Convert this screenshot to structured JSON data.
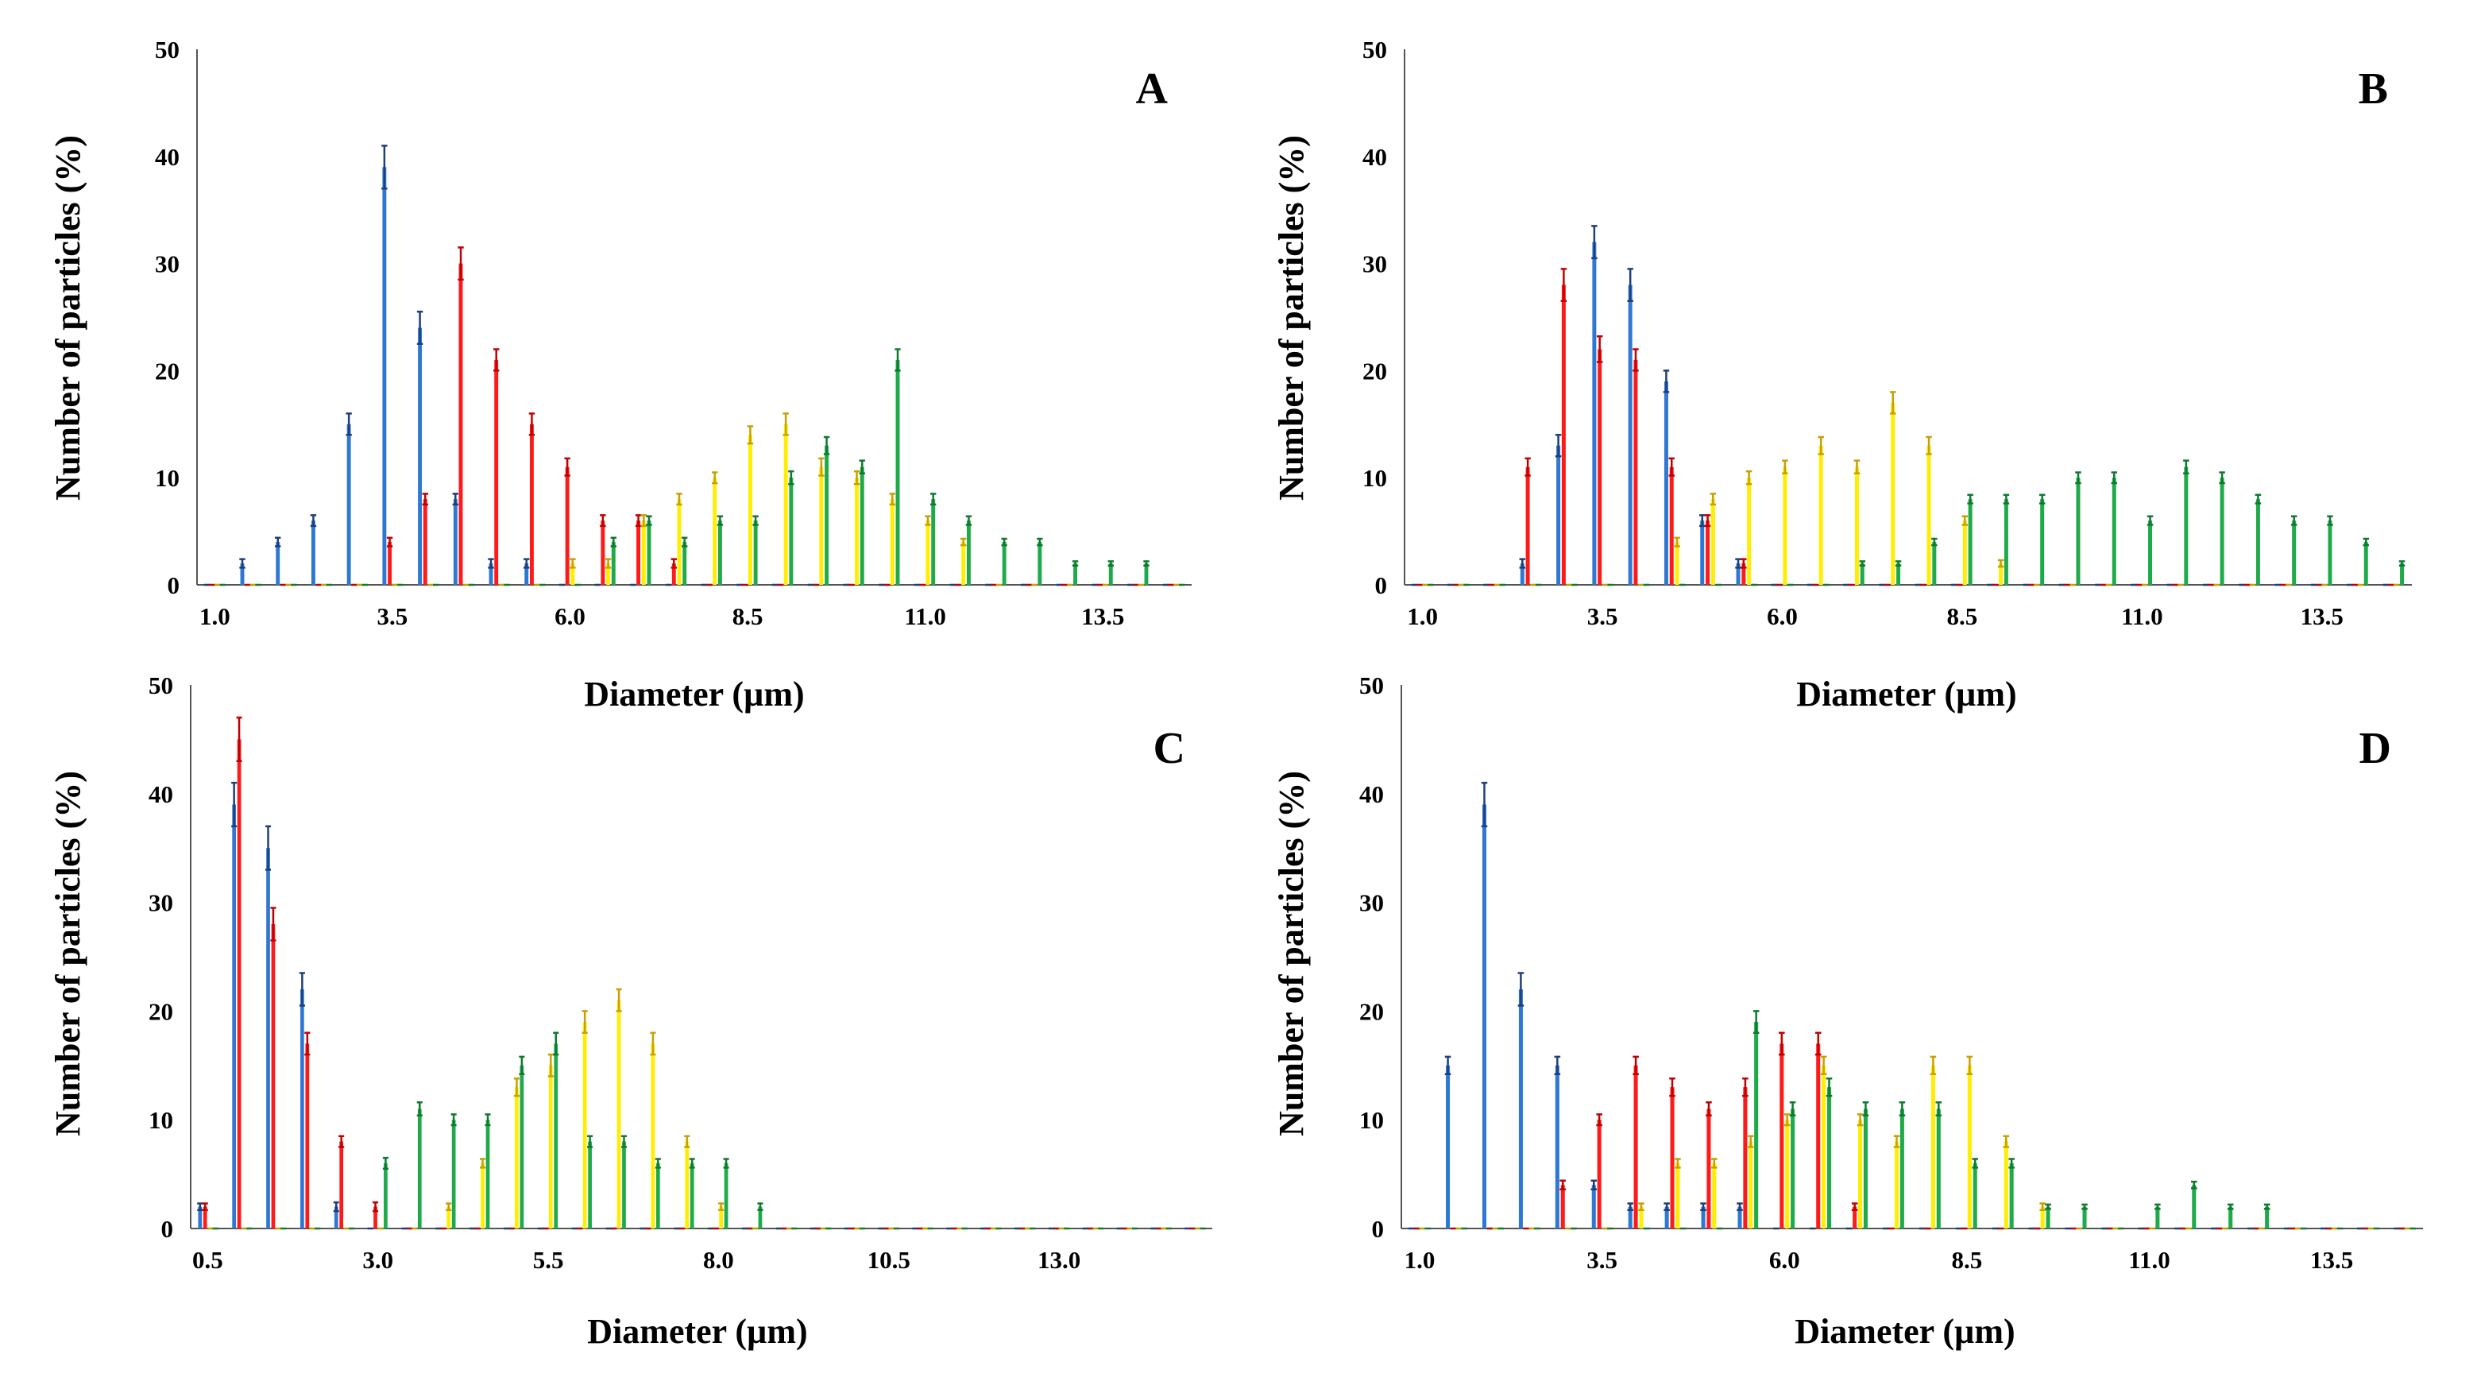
{
  "figure": {
    "series_colors": {
      "s1": "#2e78d2",
      "s2": "#ff1a1a",
      "s3": "#ffee00",
      "s4": "#1faa4a"
    },
    "errorbar_colors": {
      "s1": "#1f3f7a",
      "s2": "#c00000",
      "s3": "#c8a000",
      "s4": "#0e7a30"
    }
  },
  "chart_data": [
    {
      "panel": "A",
      "type": "bar",
      "xlabel": "Diameter (µm)",
      "ylabel": "Number  of  particles (%)",
      "ylim": [
        0,
        50
      ],
      "yticks": [
        "0",
        "10",
        "20",
        "30",
        "40",
        "50"
      ],
      "categories": [
        "1.0",
        "1.5",
        "2.0",
        "2.5",
        "3.0",
        "3.5",
        "4.0",
        "4.5",
        "5.0",
        "5.5",
        "6.0",
        "6.5",
        "7.0",
        "7.5",
        "8.0",
        "8.5",
        "9.0",
        "9.5",
        "10.0",
        "10.5",
        "11.0",
        "11.5",
        "12.0",
        "12.5",
        "13.0",
        "13.5",
        "14.0",
        "14.5"
      ],
      "xtick_labels": [
        "1.0",
        "3.5",
        "6.0",
        "8.5",
        "11.0",
        "13.5"
      ],
      "xtick_every": 5,
      "series": [
        {
          "name": "s1",
          "values": [
            0,
            2,
            4,
            6,
            15,
            39,
            24,
            8,
            2,
            2,
            0,
            0,
            0,
            0,
            0,
            0,
            0,
            0,
            0,
            0,
            0,
            0,
            0,
            0,
            0,
            0,
            0,
            0
          ],
          "errors": [
            0,
            0.4,
            0.4,
            0.5,
            1,
            2,
            1.5,
            0.5,
            0.4,
            0.4,
            0,
            0,
            0,
            0,
            0,
            0,
            0,
            0,
            0,
            0,
            0,
            0,
            0,
            0,
            0,
            0,
            0,
            0
          ]
        },
        {
          "name": "s2",
          "values": [
            0,
            0,
            0,
            0,
            0,
            4,
            8,
            30,
            21,
            15,
            11,
            6,
            6,
            2,
            0,
            0,
            0,
            0,
            0,
            0,
            0,
            0,
            0,
            0,
            0,
            0,
            0,
            0
          ],
          "errors": [
            0,
            0,
            0,
            0,
            0,
            0.4,
            0.5,
            1.5,
            1,
            1,
            0.8,
            0.5,
            0.5,
            0.4,
            0,
            0,
            0,
            0,
            0,
            0,
            0,
            0,
            0,
            0,
            0,
            0,
            0,
            0
          ]
        },
        {
          "name": "s3",
          "values": [
            0,
            0,
            0,
            0,
            0,
            0,
            0,
            0,
            0,
            0,
            2,
            2,
            6,
            8,
            10,
            14,
            15,
            11,
            10,
            8,
            6,
            4,
            0,
            0,
            0,
            0,
            0,
            0
          ],
          "errors": [
            0,
            0,
            0,
            0,
            0,
            0,
            0,
            0,
            0,
            0,
            0.4,
            0.4,
            0.5,
            0.5,
            0.5,
            0.8,
            1,
            0.8,
            0.6,
            0.5,
            0.4,
            0.3,
            0,
            0,
            0,
            0,
            0,
            0
          ]
        },
        {
          "name": "s4",
          "values": [
            0,
            0,
            0,
            0,
            0,
            0,
            0,
            0,
            0,
            0,
            0,
            4,
            6,
            4,
            6,
            6,
            10,
            13,
            11,
            21,
            8,
            6,
            4,
            4,
            2,
            2,
            2,
            0
          ],
          "errors": [
            0,
            0,
            0,
            0,
            0,
            0,
            0,
            0,
            0,
            0,
            0,
            0.4,
            0.4,
            0.4,
            0.4,
            0.4,
            0.6,
            0.8,
            0.6,
            1,
            0.5,
            0.4,
            0.3,
            0.3,
            0.2,
            0.2,
            0.2,
            0
          ]
        }
      ]
    },
    {
      "panel": "B",
      "type": "bar",
      "xlabel": "Diameter (µm)",
      "ylabel": "Number  of  particles (%)",
      "ylim": [
        0,
        50
      ],
      "yticks": [
        "0",
        "10",
        "20",
        "30",
        "40",
        "50"
      ],
      "categories": [
        "1.0",
        "1.5",
        "2.0",
        "2.5",
        "3.0",
        "3.5",
        "4.0",
        "4.5",
        "5.0",
        "5.5",
        "6.0",
        "6.5",
        "7.0",
        "7.5",
        "8.0",
        "8.5",
        "9.0",
        "9.5",
        "10.0",
        "10.5",
        "11.0",
        "11.5",
        "12.0",
        "12.5",
        "13.0",
        "13.5",
        "14.0",
        "14.5"
      ],
      "xtick_labels": [
        "1.0",
        "3.5",
        "6.0",
        "8.5",
        "11.0",
        "13.5"
      ],
      "xtick_every": 5,
      "series": [
        {
          "name": "s1",
          "values": [
            0,
            0,
            0,
            2,
            13,
            32,
            28,
            19,
            6,
            2,
            0,
            0,
            0,
            0,
            0,
            0,
            0,
            0,
            0,
            0,
            0,
            0,
            0,
            0,
            0,
            0,
            0,
            0
          ],
          "errors": [
            0,
            0,
            0,
            0.4,
            1,
            1.5,
            1.5,
            1,
            0.5,
            0.4,
            0,
            0,
            0,
            0,
            0,
            0,
            0,
            0,
            0,
            0,
            0,
            0,
            0,
            0,
            0,
            0,
            0,
            0
          ]
        },
        {
          "name": "s2",
          "values": [
            0,
            0,
            0,
            11,
            28,
            22,
            21,
            11,
            6,
            2,
            0,
            0,
            0,
            0,
            0,
            0,
            0,
            0,
            0,
            0,
            0,
            0,
            0,
            0,
            0,
            0,
            0,
            0
          ],
          "errors": [
            0,
            0,
            0,
            0.8,
            1.5,
            1.2,
            1,
            0.8,
            0.5,
            0.4,
            0,
            0,
            0,
            0,
            0,
            0,
            0,
            0,
            0,
            0,
            0,
            0,
            0,
            0,
            0,
            0,
            0,
            0
          ]
        },
        {
          "name": "s3",
          "values": [
            0,
            0,
            0,
            0,
            0,
            0,
            0,
            4,
            8,
            10,
            11,
            13,
            11,
            17,
            13,
            6,
            2,
            0,
            0,
            0,
            0,
            0,
            0,
            0,
            0,
            0,
            0,
            0
          ],
          "errors": [
            0,
            0,
            0,
            0,
            0,
            0,
            0,
            0.4,
            0.5,
            0.6,
            0.6,
            0.8,
            0.6,
            1,
            0.8,
            0.4,
            0.3,
            0,
            0,
            0,
            0,
            0,
            0,
            0,
            0,
            0,
            0,
            0
          ]
        },
        {
          "name": "s4",
          "values": [
            0,
            0,
            0,
            0,
            0,
            0,
            0,
            0,
            0,
            0,
            0,
            0,
            2,
            2,
            4,
            8,
            8,
            8,
            10,
            10,
            6,
            11,
            10,
            8,
            6,
            6,
            4,
            2
          ],
          "errors": [
            0,
            0,
            0,
            0,
            0,
            0,
            0,
            0,
            0,
            0,
            0,
            0,
            0.2,
            0.2,
            0.3,
            0.4,
            0.4,
            0.4,
            0.5,
            0.5,
            0.4,
            0.6,
            0.5,
            0.4,
            0.4,
            0.4,
            0.3,
            0.2
          ]
        }
      ]
    },
    {
      "panel": "C",
      "type": "bar",
      "xlabel": "Diameter (µm)",
      "ylabel": "Number  of  particles (%)",
      "ylim": [
        0,
        50
      ],
      "yticks": [
        "0",
        "10",
        "20",
        "30",
        "40",
        "50"
      ],
      "categories": [
        "0.5",
        "1.0",
        "1.5",
        "2.0",
        "2.5",
        "3.0",
        "3.5",
        "4.0",
        "4.5",
        "5.0",
        "5.5",
        "6.0",
        "6.5",
        "7.0",
        "7.5",
        "8.0",
        "8.5",
        "9.0",
        "9.5",
        "10.0",
        "10.5",
        "11.0",
        "11.5",
        "12.0",
        "12.5",
        "13.0",
        "13.5",
        "14.0",
        "14.5",
        "15.0"
      ],
      "xtick_labels": [
        "0.5",
        "3.0",
        "5.5",
        "8.0",
        "10.5",
        "13.0"
      ],
      "xtick_every": 5,
      "series": [
        {
          "name": "s1",
          "values": [
            2,
            39,
            35,
            22,
            2,
            0,
            0,
            0,
            0,
            0,
            0,
            0,
            0,
            0,
            0,
            0,
            0,
            0,
            0,
            0,
            0,
            0,
            0,
            0,
            0,
            0,
            0,
            0,
            0,
            0
          ],
          "errors": [
            0.3,
            2,
            2,
            1.5,
            0.4,
            0,
            0,
            0,
            0,
            0,
            0,
            0,
            0,
            0,
            0,
            0,
            0,
            0,
            0,
            0,
            0,
            0,
            0,
            0,
            0,
            0,
            0,
            0,
            0,
            0
          ]
        },
        {
          "name": "s2",
          "values": [
            2,
            45,
            28,
            17,
            8,
            2,
            0,
            0,
            0,
            0,
            0,
            0,
            0,
            0,
            0,
            0,
            0,
            0,
            0,
            0,
            0,
            0,
            0,
            0,
            0,
            0,
            0,
            0,
            0,
            0
          ],
          "errors": [
            0.3,
            2,
            1.5,
            1,
            0.5,
            0.4,
            0,
            0,
            0,
            0,
            0,
            0,
            0,
            0,
            0,
            0,
            0,
            0,
            0,
            0,
            0,
            0,
            0,
            0,
            0,
            0,
            0,
            0,
            0,
            0
          ]
        },
        {
          "name": "s3",
          "values": [
            0,
            0,
            0,
            0,
            0,
            0,
            0,
            2,
            6,
            13,
            15,
            19,
            21,
            17,
            8,
            2,
            0,
            0,
            0,
            0,
            0,
            0,
            0,
            0,
            0,
            0,
            0,
            0,
            0,
            0
          ],
          "errors": [
            0,
            0,
            0,
            0,
            0,
            0,
            0,
            0.3,
            0.4,
            0.8,
            1,
            1,
            1,
            1,
            0.5,
            0.3,
            0,
            0,
            0,
            0,
            0,
            0,
            0,
            0,
            0,
            0,
            0,
            0,
            0,
            0
          ]
        },
        {
          "name": "s4",
          "values": [
            0,
            0,
            0,
            0,
            0,
            6,
            11,
            10,
            10,
            15,
            17,
            8,
            8,
            6,
            6,
            6,
            2,
            0,
            0,
            0,
            0,
            0,
            0,
            0,
            0,
            0,
            0,
            0,
            0,
            0
          ],
          "errors": [
            0,
            0,
            0,
            0,
            0,
            0.5,
            0.6,
            0.5,
            0.5,
            0.8,
            1,
            0.5,
            0.5,
            0.4,
            0.4,
            0.4,
            0.3,
            0,
            0,
            0,
            0,
            0,
            0,
            0,
            0,
            0,
            0,
            0,
            0,
            0
          ]
        }
      ]
    },
    {
      "panel": "D",
      "type": "bar",
      "xlabel": "Diameter (µm)",
      "ylabel": "Number  of  particles (%)",
      "ylim": [
        0,
        50
      ],
      "yticks": [
        "0",
        "10",
        "20",
        "30",
        "40",
        "50"
      ],
      "categories": [
        "1.0",
        "1.5",
        "2.0",
        "2.5",
        "3.0",
        "3.5",
        "4.0",
        "4.5",
        "5.0",
        "5.5",
        "6.0",
        "6.5",
        "7.0",
        "7.5",
        "8.0",
        "8.5",
        "9.0",
        "9.5",
        "10.0",
        "10.5",
        "11.0",
        "11.5",
        "12.0",
        "12.5",
        "13.0",
        "13.5",
        "14.0",
        "14.5"
      ],
      "xtick_labels": [
        "1.0",
        "3.5",
        "6.0",
        "8.5",
        "11.0",
        "13.5"
      ],
      "xtick_every": 5,
      "series": [
        {
          "name": "s1",
          "values": [
            0,
            15,
            39,
            22,
            15,
            4,
            2,
            2,
            2,
            2,
            0,
            0,
            0,
            0,
            0,
            0,
            0,
            0,
            0,
            0,
            0,
            0,
            0,
            0,
            0,
            0,
            0,
            0
          ],
          "errors": [
            0,
            0.8,
            2,
            1.5,
            0.8,
            0.4,
            0.3,
            0.3,
            0.3,
            0.3,
            0,
            0,
            0,
            0,
            0,
            0,
            0,
            0,
            0,
            0,
            0,
            0,
            0,
            0,
            0,
            0,
            0,
            0
          ]
        },
        {
          "name": "s2",
          "values": [
            0,
            0,
            0,
            0,
            4,
            10,
            15,
            13,
            11,
            13,
            17,
            17,
            2,
            0,
            0,
            0,
            0,
            0,
            0,
            0,
            0,
            0,
            0,
            0,
            0,
            0,
            0,
            0
          ],
          "errors": [
            0,
            0,
            0,
            0,
            0.4,
            0.5,
            0.8,
            0.8,
            0.6,
            0.8,
            1,
            1,
            0.3,
            0,
            0,
            0,
            0,
            0,
            0,
            0,
            0,
            0,
            0,
            0,
            0,
            0,
            0,
            0
          ]
        },
        {
          "name": "s3",
          "values": [
            0,
            0,
            0,
            0,
            0,
            0,
            2,
            6,
            6,
            8,
            10,
            15,
            10,
            8,
            15,
            15,
            8,
            2,
            0,
            0,
            0,
            0,
            0,
            0,
            0,
            0,
            0,
            0
          ],
          "errors": [
            0,
            0,
            0,
            0,
            0,
            0,
            0.3,
            0.4,
            0.4,
            0.5,
            0.5,
            0.8,
            0.5,
            0.5,
            0.8,
            0.8,
            0.5,
            0.3,
            0,
            0,
            0,
            0,
            0,
            0,
            0,
            0,
            0,
            0
          ]
        },
        {
          "name": "s4",
          "values": [
            0,
            0,
            0,
            0,
            0,
            0,
            0,
            0,
            0,
            19,
            11,
            13,
            11,
            11,
            11,
            6,
            6,
            2,
            2,
            0,
            2,
            4,
            2,
            2,
            0,
            0,
            0,
            0
          ],
          "errors": [
            0,
            0,
            0,
            0,
            0,
            0,
            0,
            0,
            0,
            1,
            0.6,
            0.8,
            0.6,
            0.6,
            0.6,
            0.4,
            0.4,
            0.2,
            0.2,
            0,
            0.2,
            0.3,
            0.2,
            0.2,
            0,
            0,
            0,
            0
          ]
        }
      ]
    }
  ]
}
